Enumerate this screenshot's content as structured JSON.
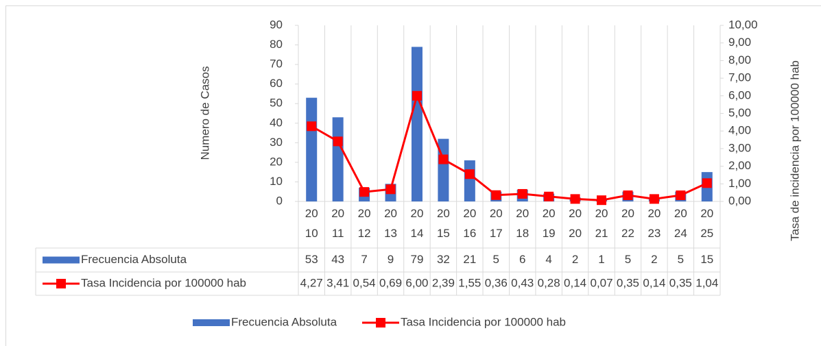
{
  "chart_data": {
    "type": "bar-line",
    "y_label": "Numero de Casos",
    "y2_label": "Tasa de incidencia por 100000 hab",
    "categories": [
      "2010",
      "2011",
      "2012",
      "2013",
      "2014",
      "2015",
      "2016",
      "2017",
      "2018",
      "2019",
      "2020",
      "2021",
      "2022",
      "2023",
      "2024",
      "2025"
    ],
    "series": [
      {
        "name": "Frecuencia Absoluta",
        "type": "bar",
        "color": "#4472c4",
        "values": [
          53,
          43,
          7,
          9,
          79,
          32,
          21,
          5,
          6,
          4,
          2,
          1,
          5,
          2,
          5,
          15
        ]
      },
      {
        "name": "Tasa Incidencia por 100000 hab",
        "type": "line",
        "axis": "y2",
        "color": "#ff0000",
        "values": [
          4.27,
          3.41,
          0.54,
          0.69,
          6.0,
          2.39,
          1.55,
          0.36,
          0.43,
          0.28,
          0.14,
          0.07,
          0.35,
          0.14,
          0.35,
          1.04
        ],
        "value_labels": [
          "4,27",
          "3,41",
          "0,54",
          "0,69",
          "6,00",
          "2,39",
          "1,55",
          "0,36",
          "0,43",
          "0,28",
          "0,14",
          "0,07",
          "0,35",
          "0,14",
          "0,35",
          "1,04"
        ]
      }
    ],
    "ylim": [
      0,
      90
    ],
    "yticks": [
      0,
      10,
      20,
      30,
      40,
      50,
      60,
      70,
      80,
      90
    ],
    "y2lim": [
      0,
      10
    ],
    "y2ticks": [
      {
        "value": 0,
        "label": "0,00"
      },
      {
        "value": 1,
        "label": "1,00"
      },
      {
        "value": 2,
        "label": "2,00"
      },
      {
        "value": 3,
        "label": "3,00"
      },
      {
        "value": 4,
        "label": "4,00"
      },
      {
        "value": 5,
        "label": "5,00"
      },
      {
        "value": 6,
        "label": "6,00"
      },
      {
        "value": 7,
        "label": "7,00"
      },
      {
        "value": 8,
        "label": "8,00"
      },
      {
        "value": 9,
        "label": "9,00"
      },
      {
        "value": 10,
        "label": "10,00"
      }
    ],
    "legend": "bottom",
    "data_table": true
  }
}
